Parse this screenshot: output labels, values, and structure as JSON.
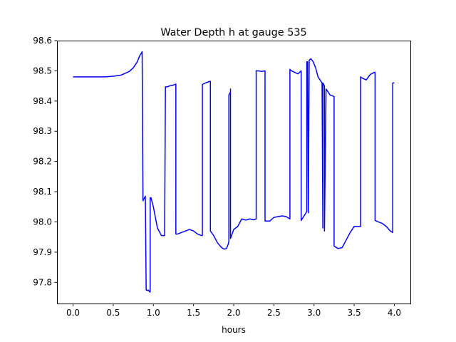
{
  "chart_data": {
    "type": "line",
    "title": "Water Depth h at gauge 535",
    "xlabel": "hours",
    "ylabel": "",
    "xlim": [
      -0.2,
      4.2
    ],
    "ylim": [
      97.73,
      98.6
    ],
    "xticks": [
      0.0,
      0.5,
      1.0,
      1.5,
      2.0,
      2.5,
      3.0,
      3.5,
      4.0
    ],
    "xtick_labels": [
      "0.0",
      "0.5",
      "1.0",
      "1.5",
      "2.0",
      "2.5",
      "3.0",
      "3.5",
      "4.0"
    ],
    "yticks": [
      97.8,
      97.9,
      98.0,
      98.1,
      98.2,
      98.3,
      98.4,
      98.5,
      98.6
    ],
    "ytick_labels": [
      "97.8",
      "97.9",
      "98.0",
      "98.1",
      "98.2",
      "98.3",
      "98.4",
      "98.5",
      "98.6"
    ],
    "grid": false,
    "series": [
      {
        "color": "#0000ff",
        "x": [
          0.0,
          0.2,
          0.4,
          0.5,
          0.6,
          0.7,
          0.75,
          0.8,
          0.83,
          0.86,
          0.87,
          0.87,
          0.89,
          0.9,
          0.91,
          0.91,
          0.93,
          0.94,
          0.95,
          0.96,
          0.96,
          0.97,
          1.0,
          1.05,
          1.1,
          1.14,
          1.15,
          1.15,
          1.17,
          1.2,
          1.25,
          1.28,
          1.28,
          1.3,
          1.35,
          1.4,
          1.45,
          1.5,
          1.55,
          1.6,
          1.61,
          1.61,
          1.65,
          1.7,
          1.71,
          1.71,
          1.75,
          1.8,
          1.85,
          1.88,
          1.91,
          1.93,
          1.94,
          1.94,
          1.96,
          1.96,
          1.96,
          1.98,
          2.0,
          2.05,
          2.1,
          2.15,
          2.2,
          2.25,
          2.28,
          2.28,
          2.3,
          2.35,
          2.39,
          2.39,
          2.45,
          2.5,
          2.6,
          2.65,
          2.7,
          2.7,
          2.72,
          2.8,
          2.84,
          2.84,
          2.9,
          2.91,
          2.91,
          2.92,
          2.93,
          2.93,
          2.94,
          2.94,
          2.96,
          2.99,
          3.02,
          3.05,
          3.1,
          3.11,
          3.11,
          3.13,
          3.13,
          3.15,
          3.2,
          3.25,
          3.25,
          3.3,
          3.35,
          3.4,
          3.45,
          3.5,
          3.53,
          3.58,
          3.58,
          3.6,
          3.65,
          3.7,
          3.75,
          3.76,
          3.76,
          3.8,
          3.85,
          3.9,
          3.95,
          3.98,
          3.98,
          4.0
        ],
        "y": [
          98.48,
          98.48,
          98.48,
          98.482,
          98.486,
          98.498,
          98.51,
          98.53,
          98.55,
          98.563,
          98.1,
          98.07,
          98.08,
          98.085,
          97.78,
          97.775,
          97.773,
          97.774,
          97.77,
          97.768,
          98.08,
          98.08,
          98.05,
          97.98,
          97.955,
          97.955,
          98.447,
          98.447,
          98.447,
          98.45,
          98.453,
          98.456,
          97.96,
          97.96,
          97.965,
          97.97,
          97.975,
          97.97,
          97.96,
          97.955,
          97.955,
          98.455,
          98.46,
          98.465,
          98.465,
          97.97,
          97.955,
          97.93,
          97.915,
          97.91,
          97.912,
          97.925,
          97.935,
          98.42,
          98.43,
          98.44,
          97.945,
          97.96,
          97.975,
          97.985,
          98.01,
          98.006,
          98.01,
          98.007,
          98.01,
          98.5,
          98.5,
          98.498,
          98.5,
          98.003,
          98.003,
          98.015,
          98.02,
          98.018,
          98.01,
          98.505,
          98.5,
          98.49,
          98.5,
          98.005,
          98.03,
          98.035,
          98.53,
          98.53,
          98.03,
          98.04,
          98.535,
          98.535,
          98.54,
          98.53,
          98.51,
          98.48,
          98.46,
          97.98,
          98.46,
          98.45,
          97.97,
          98.44,
          98.42,
          98.415,
          97.92,
          97.912,
          97.915,
          97.94,
          97.965,
          97.985,
          97.985,
          97.985,
          98.48,
          98.476,
          98.47,
          98.488,
          98.495,
          98.495,
          98.005,
          98.0,
          97.995,
          97.985,
          97.97,
          97.965,
          98.46,
          98.46
        ]
      }
    ]
  }
}
